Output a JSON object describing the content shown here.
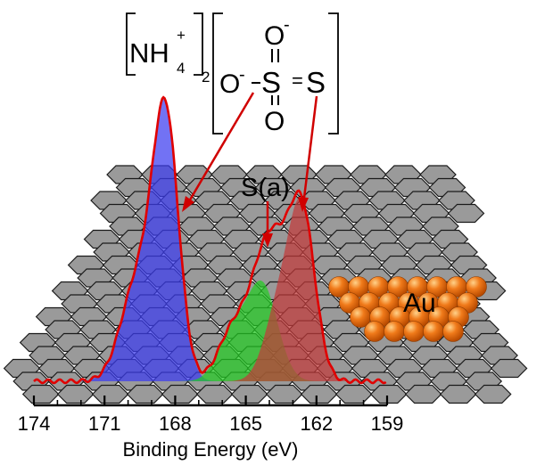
{
  "colors": {
    "hexagon_fill": "#9a9a9a",
    "hexagon_stroke": "#1a1a1a",
    "peak_blue": "#3b3bf0",
    "peak_green": "#22cc22",
    "peak_red": "#c23a3a",
    "envelope": "#e00000",
    "gold_atom": "#f07a1a",
    "arrow": "#d00000"
  },
  "formula": {
    "cation": "NH",
    "cation_sub": "4",
    "cation_sup": "+",
    "cation_count": "2",
    "anion_o_top": "O",
    "anion_o_left": "O",
    "anion_o_bottom": "O",
    "anion_s_center": "S",
    "anion_s_right": "S",
    "minus": "-",
    "double_bond": "="
  },
  "labels": {
    "adsorbed_sulfur": "S(a)",
    "substrate": "Au"
  },
  "chart_data": {
    "type": "area",
    "xlabel": "Binding Energy (eV)",
    "x_reversed": true,
    "xlim": [
      174,
      159
    ],
    "tick_labels": [
      "174",
      "171",
      "168",
      "165",
      "162",
      "159"
    ],
    "tick_values": [
      174,
      171,
      168,
      165,
      162,
      159
    ],
    "series": [
      {
        "components": [
          {
            "center": 168.4,
            "height": 1.0,
            "sigma": 0.55
          },
          {
            "center": 169.6,
            "height": 0.38,
            "sigma": 0.7
          }
        ]
      },
      {
        "components": [
          {
            "center": 164.3,
            "height": 0.37,
            "sigma": 0.65
          },
          {
            "center": 165.6,
            "height": 0.18,
            "sigma": 0.6
          }
        ]
      },
      {
        "components": [
          {
            "center": 162.6,
            "height": 0.63,
            "sigma": 0.55
          },
          {
            "center": 163.6,
            "height": 0.28,
            "sigma": 0.6
          }
        ]
      }
    ]
  }
}
